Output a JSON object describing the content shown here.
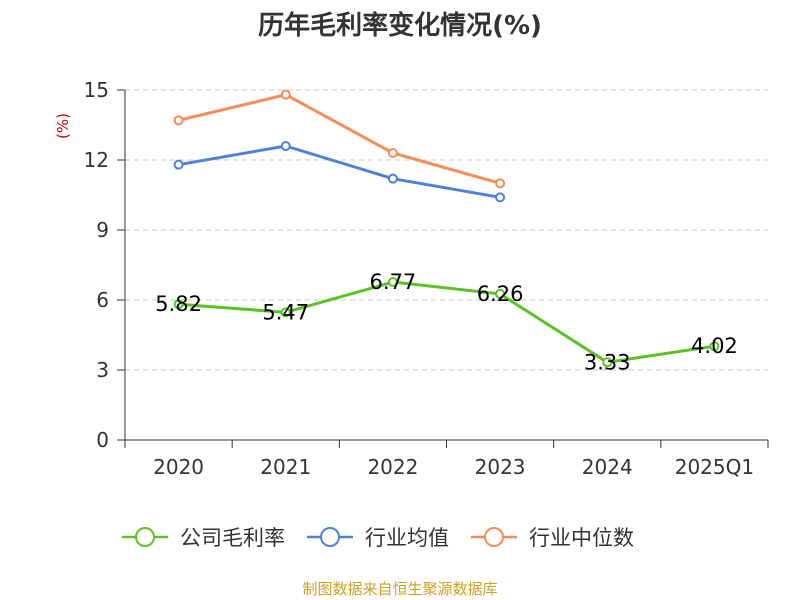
{
  "chart_data": {
    "type": "line",
    "title": "历年毛利率变化情况(%)",
    "ylabel": "(%)",
    "xlabel": "",
    "categories": [
      "2020",
      "2021",
      "2022",
      "2023",
      "2024",
      "2025Q1"
    ],
    "ylim": [
      0,
      15
    ],
    "yticks": [
      "0",
      "3",
      "6",
      "9",
      "12",
      "15"
    ],
    "grid": true,
    "legend_position": "bottom",
    "series": [
      {
        "name": "公司毛利率",
        "color": "#5cc127",
        "values": [
          5.82,
          5.47,
          6.77,
          6.26,
          3.33,
          4.02
        ],
        "labels": [
          "5.82",
          "5.47",
          "6.77",
          "6.26",
          "3.33",
          "4.02"
        ]
      },
      {
        "name": "行业均值",
        "color": "#4f81dc",
        "values": [
          11.8,
          12.6,
          11.2,
          10.4,
          null,
          null
        ]
      },
      {
        "name": "行业中位数",
        "color": "#f78c57",
        "values": [
          13.7,
          14.8,
          12.3,
          11.0,
          null,
          null
        ]
      }
    ]
  },
  "source": "制图数据来自恒生聚源数据库"
}
